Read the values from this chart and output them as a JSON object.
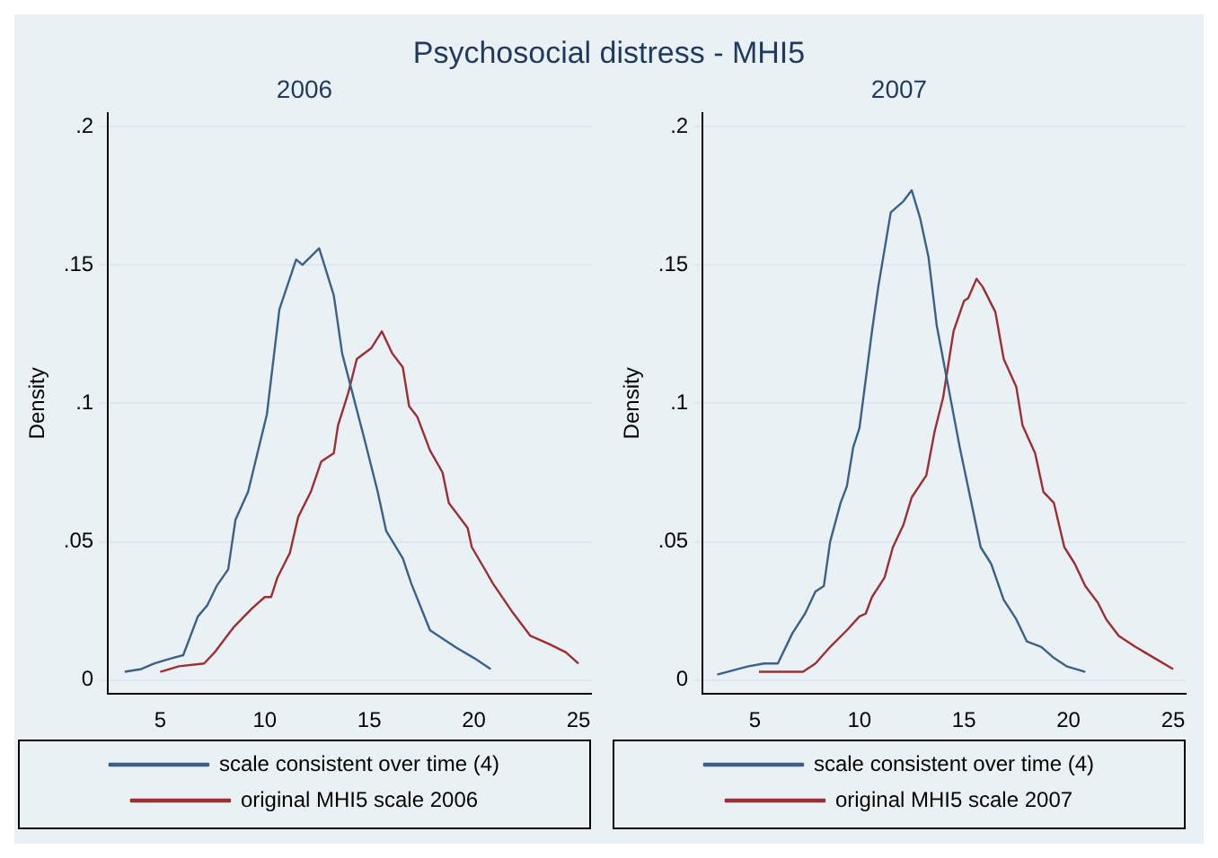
{
  "chart_data": [
    {
      "type": "line",
      "title": "2006",
      "ylabel": "Density",
      "annotations": [
        "Psychosocial distress - MHI5"
      ],
      "xlim": [
        2.5,
        25.6
      ],
      "xticks": [
        5,
        10,
        15,
        20,
        25
      ],
      "ylim": [
        -0.005,
        0.205
      ],
      "yticks": [
        {
          "value": 0,
          "label": "0"
        },
        {
          "value": 0.05,
          "label": ".05"
        },
        {
          "value": 0.1,
          "label": ".1"
        },
        {
          "value": 0.15,
          "label": ".15"
        },
        {
          "value": 0.2,
          "label": ".2"
        }
      ],
      "grid": "y",
      "legend": "bottom",
      "marker": "none",
      "line_style": "solid",
      "series": [
        {
          "name": "scale consistent over time (4)",
          "color": "#3b6189",
          "x": [
            3.3,
            4.1,
            4.7,
            5.15,
            5.6,
            6.1,
            6.8,
            7.25,
            7.7,
            8.25,
            8.6,
            9.2,
            10.1,
            10.7,
            11.5,
            11.8,
            12.6,
            13.3,
            13.7,
            14.8,
            15.4,
            15.8,
            16.6,
            17.0,
            17.9,
            19.1,
            20.0,
            20.8
          ],
          "values": [
            0.003,
            0.004,
            0.006,
            0.007,
            0.008,
            0.009,
            0.023,
            0.027,
            0.034,
            0.04,
            0.058,
            0.068,
            0.096,
            0.134,
            0.152,
            0.15,
            0.156,
            0.139,
            0.118,
            0.086,
            0.068,
            0.054,
            0.044,
            0.035,
            0.018,
            0.012,
            0.008,
            0.004
          ]
        },
        {
          "name": "original MHI5 scale 2006",
          "color": "#9b2f33",
          "x": [
            5,
            5.9,
            7.1,
            7.6,
            8.5,
            9.4,
            10.0,
            10.3,
            10.6,
            11.2,
            11.6,
            12.2,
            12.7,
            13.3,
            13.5,
            14.0,
            14.4,
            15.1,
            15.6,
            16.1,
            16.6,
            16.9,
            17.3,
            17.9,
            18.5,
            18.8,
            19.7,
            19.9,
            20.6,
            20.9,
            21.8,
            22.7,
            23.6,
            24.4,
            25.0
          ],
          "values": [
            0.003,
            0.005,
            0.006,
            0.01,
            0.019,
            0.026,
            0.03,
            0.03,
            0.037,
            0.046,
            0.059,
            0.068,
            0.079,
            0.082,
            0.092,
            0.104,
            0.116,
            0.12,
            0.126,
            0.118,
            0.113,
            0.099,
            0.095,
            0.083,
            0.075,
            0.064,
            0.055,
            0.048,
            0.039,
            0.035,
            0.025,
            0.016,
            0.013,
            0.01,
            0.006
          ]
        }
      ]
    },
    {
      "type": "line",
      "title": "2007",
      "ylabel": "Density",
      "xlim": [
        2.5,
        25.6
      ],
      "xticks": [
        5,
        10,
        15,
        20,
        25
      ],
      "ylim": [
        -0.005,
        0.205
      ],
      "yticks": [
        {
          "value": 0,
          "label": "0"
        },
        {
          "value": 0.05,
          "label": ".05"
        },
        {
          "value": 0.1,
          "label": ".1"
        },
        {
          "value": 0.15,
          "label": ".15"
        },
        {
          "value": 0.2,
          "label": ".2"
        }
      ],
      "grid": "y",
      "legend": "bottom",
      "marker": "none",
      "line_style": "solid",
      "series": [
        {
          "name": "scale consistent over time (4)",
          "color": "#3b6189",
          "x": [
            3.2,
            4.2,
            4.7,
            5.45,
            6.1,
            6.8,
            7.4,
            7.9,
            8.3,
            8.6,
            9.1,
            9.4,
            9.7,
            10.0,
            10.6,
            10.9,
            11.5,
            12.1,
            12.5,
            12.9,
            13.3,
            13.7,
            14.2,
            14.8,
            15.3,
            15.8,
            16.3,
            16.9,
            17.5,
            18.0,
            18.7,
            19.3,
            19.9,
            20.8
          ],
          "values": [
            0.002,
            0.004,
            0.005,
            0.006,
            0.006,
            0.017,
            0.024,
            0.032,
            0.034,
            0.05,
            0.064,
            0.07,
            0.084,
            0.091,
            0.126,
            0.142,
            0.169,
            0.173,
            0.177,
            0.167,
            0.153,
            0.128,
            0.108,
            0.084,
            0.066,
            0.048,
            0.042,
            0.029,
            0.022,
            0.014,
            0.012,
            0.008,
            0.005,
            0.003
          ]
        },
        {
          "name": "original MHI5 scale 2007",
          "color": "#9b2f33",
          "x": [
            5.2,
            7.3,
            7.9,
            8.6,
            9.4,
            10.0,
            10.3,
            10.6,
            11.2,
            11.6,
            12.1,
            12.5,
            13.2,
            13.6,
            14.0,
            14.5,
            15.0,
            15.2,
            15.6,
            15.9,
            16.5,
            16.9,
            17.5,
            17.8,
            18.4,
            18.8,
            19.3,
            19.8,
            20.3,
            20.8,
            21.4,
            21.8,
            22.4,
            23.2,
            24.1,
            25.0
          ],
          "values": [
            0.003,
            0.003,
            0.006,
            0.012,
            0.018,
            0.023,
            0.024,
            0.03,
            0.037,
            0.048,
            0.056,
            0.066,
            0.074,
            0.09,
            0.102,
            0.126,
            0.137,
            0.138,
            0.145,
            0.142,
            0.133,
            0.116,
            0.106,
            0.092,
            0.082,
            0.068,
            0.064,
            0.048,
            0.042,
            0.034,
            0.028,
            0.022,
            0.016,
            0.012,
            0.008,
            0.004
          ]
        }
      ]
    }
  ]
}
